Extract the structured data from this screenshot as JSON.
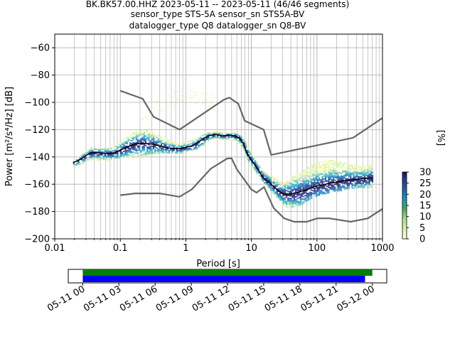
{
  "title": {
    "line1": "BK.BK57.00.HHZ   2023-05-11 -- 2023-05-11  (46/46 segments)",
    "line2": "sensor_type STS-5A sensor_sn STS5A-BV",
    "line3": "datalogger_type Q8 datalogger_sn Q8-BV"
  },
  "chart_data": [
    {
      "type": "heatmap",
      "subtype": "probabilistic-power-spectral-density",
      "xlabel": "Period [s]",
      "ylabel": "Power [m²/s⁴/Hz] [dB]",
      "xscale": "log",
      "xlim": [
        0.01,
        1000
      ],
      "ylim": [
        -200,
        -50
      ],
      "x_ticks": [
        0.01,
        0.1,
        1,
        10,
        100,
        1000
      ],
      "x_tick_labels": [
        "0.01",
        "0.1",
        "1",
        "10",
        "100",
        "1000"
      ],
      "y_ticks": [
        -200,
        -180,
        -160,
        -140,
        -120,
        -100,
        -80,
        -60
      ],
      "y_tick_labels": [
        "−200",
        "−180",
        "−160",
        "−140",
        "−120",
        "−100",
        "−80",
        "−60"
      ],
      "grid": true,
      "colorbar": {
        "label": "[%]",
        "ticks": [
          0,
          5,
          10,
          15,
          20,
          25,
          30
        ],
        "tick_labels": [
          "0",
          "5",
          "10",
          "15",
          "20",
          "25",
          "30"
        ],
        "range": [
          0,
          30
        ]
      },
      "mean_curve": {
        "x": [
          0.019,
          0.022,
          0.026,
          0.03,
          0.035,
          0.045,
          0.06,
          0.08,
          0.1,
          0.13,
          0.17,
          0.22,
          0.3,
          0.4,
          0.55,
          0.75,
          1.0,
          1.3,
          1.7,
          2.2,
          2.8,
          3.5,
          4.5,
          5.5,
          6.5,
          7.5,
          8.5,
          9.5,
          11,
          13,
          15,
          18,
          22,
          26,
          30,
          35,
          40,
          50,
          60,
          70,
          80,
          100,
          120,
          150,
          200,
          250,
          300,
          400,
          500,
          600,
          700
        ],
        "y": [
          -144,
          -143,
          -141,
          -139,
          -137,
          -137,
          -137.5,
          -137,
          -135,
          -132.5,
          -130.5,
          -130,
          -130.5,
          -132,
          -133.5,
          -134,
          -133,
          -131.5,
          -128,
          -124.5,
          -123.5,
          -124.5,
          -124,
          -124.5,
          -126,
          -130,
          -137,
          -141,
          -145,
          -150,
          -155,
          -158,
          -162,
          -165,
          -167,
          -167.5,
          -167,
          -166,
          -165,
          -164,
          -163,
          -161,
          -160.5,
          -159.5,
          -158.5,
          -157.5,
          -157,
          -156.5,
          -156,
          -155.5,
          -155.5
        ]
      },
      "noise_models": [
        {
          "name": "",
          "x": [
            0.1,
            0.22,
            0.32,
            0.8,
            3.8,
            4.6,
            6.3,
            7.9,
            15.4,
            20,
            354.8,
            1000
          ],
          "y": [
            -91.5,
            -97.4,
            -110.5,
            -120,
            -98,
            -96.5,
            -101,
            -113.5,
            -120,
            -138.5,
            -126,
            -111.5
          ]
        },
        {
          "name": "",
          "x": [
            0.1,
            0.17,
            0.4,
            0.8,
            1.24,
            2.4,
            4.3,
            5,
            6,
            10,
            12,
            15.6,
            21.9,
            31.6,
            45,
            70,
            101,
            154,
            328,
            600,
            1000
          ],
          "y": [
            -168,
            -166.7,
            -166.7,
            -169.2,
            -163.7,
            -148.6,
            -141.1,
            -141.1,
            -149,
            -163.8,
            -166.2,
            -162.1,
            -177.5,
            -185,
            -187.5,
            -187.5,
            -185,
            -185,
            -187.5,
            -185,
            -178
          ]
        }
      ],
      "density_bands": [
        {
          "x": [
            0.019,
            0.022,
            0.026,
            0.03,
            0.035,
            0.045,
            0.06,
            0.08,
            0.1,
            0.13,
            0.17,
            0.22,
            0.3,
            0.4,
            0.55,
            0.75,
            1.0,
            1.3,
            1.7,
            2.2,
            2.8,
            3.5,
            4.5,
            5.5,
            6.5,
            7.5,
            8.5,
            9.5,
            11,
            13,
            15,
            18,
            22,
            26,
            30,
            35,
            40,
            50,
            60,
            70,
            80,
            100,
            120,
            150,
            200,
            250,
            300,
            400,
            500,
            600,
            700
          ],
          "upper": [
            -142,
            -140,
            -138,
            -135,
            -133,
            -133,
            -133,
            -132,
            -128,
            -124,
            -121,
            -120,
            -121,
            -125,
            -128,
            -130,
            -129,
            -127,
            -124,
            -122,
            -121,
            -122,
            -122,
            -122,
            -123,
            -126,
            -131,
            -136,
            -141,
            -146,
            -150,
            -153,
            -155,
            -157,
            -158,
            -157,
            -155,
            -152,
            -150,
            -148,
            -146,
            -144,
            -143,
            -142,
            -143,
            -144,
            -145,
            -146,
            -146,
            -146,
            -146
          ],
          "lower": [
            -146,
            -146,
            -145,
            -143,
            -142,
            -142,
            -142,
            -142,
            -141,
            -140,
            -139,
            -139,
            -138,
            -137,
            -137,
            -137,
            -136,
            -135,
            -133,
            -128,
            -126,
            -127,
            -127,
            -128,
            -131,
            -135,
            -142,
            -146,
            -150,
            -155,
            -160,
            -164,
            -168,
            -171,
            -175,
            -177,
            -177,
            -176,
            -174,
            -172,
            -170,
            -168,
            -167,
            -166,
            -165,
            -164,
            -163,
            -162,
            -162,
            -162,
            -162
          ]
        }
      ],
      "sparse_band": {
        "x": [
          0.2,
          0.3,
          0.5,
          0.8,
          1.1,
          1.6,
          2.2,
          3.0
        ],
        "y": [
          -110,
          -100,
          -94,
          -91,
          -90,
          -91,
          -93,
          -97
        ]
      }
    },
    {
      "type": "timeline",
      "x_tick_labels": [
        "05-11 00",
        "05-11 03",
        "05-11 06",
        "05-11 09",
        "05-11 12",
        "05-11 15",
        "05-11 18",
        "05-11 21",
        "05-12 00"
      ],
      "x_ticks_hours": [
        0,
        3,
        6,
        9,
        12,
        15,
        18,
        21,
        24
      ],
      "xlim_hours": [
        -1.2,
        25.2
      ],
      "bars": [
        {
          "color": "#008000",
          "start_hour": 0,
          "end_hour": 24.0
        },
        {
          "color": "#0000ff",
          "start_hour": 0,
          "end_hour": 23.4
        }
      ]
    }
  ],
  "colors": {
    "mean_curve": "#000000",
    "noise_model": "#666666",
    "grid": "#b0b0b0",
    "colormap": [
      "#ffffd9",
      "#edf8b1",
      "#c7e9b4",
      "#7fcdbb",
      "#41b6c4",
      "#1d91c0",
      "#225ea8",
      "#253494",
      "#081d58",
      "#2d0a4a"
    ]
  }
}
